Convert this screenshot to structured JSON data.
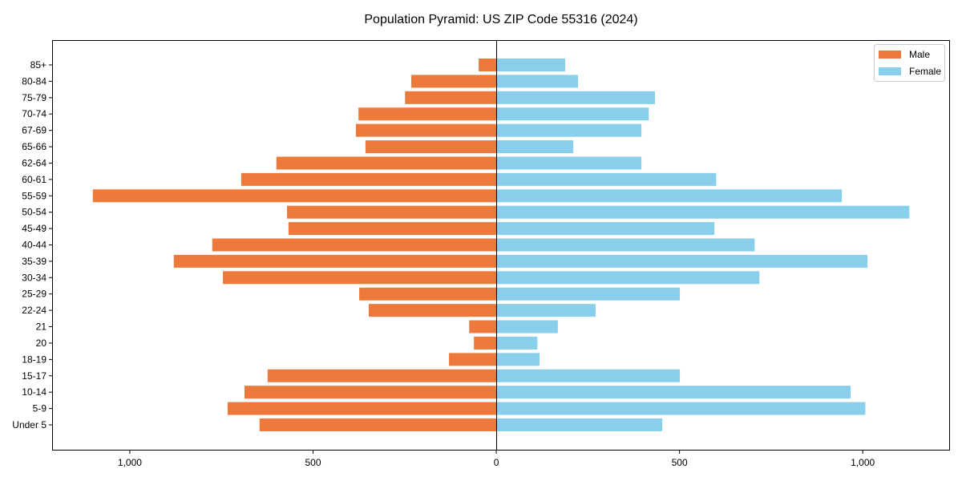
{
  "chart_data": {
    "type": "bar",
    "orientation": "horizontal-pyramid",
    "title": "Population Pyramid: US ZIP Code 55316 (2024)",
    "xlabel": "",
    "ylabel": "",
    "xlim": [
      -1212,
      1238
    ],
    "xticks": [
      -1000,
      -500,
      0,
      500,
      1000
    ],
    "xtick_labels": [
      "1,000",
      "500",
      "0",
      "500",
      "1,000"
    ],
    "grid": false,
    "legend_position": "top-right",
    "categories": [
      "Under 5",
      "5-9",
      "10-14",
      "15-17",
      "18-19",
      "20",
      "21",
      "22-24",
      "25-29",
      "30-34",
      "35-39",
      "40-44",
      "45-49",
      "50-54",
      "55-59",
      "60-61",
      "62-64",
      "65-66",
      "67-69",
      "70-74",
      "75-79",
      "80-84",
      "85+"
    ],
    "series": [
      {
        "name": "Male",
        "color": "#ed7a3b",
        "side": "left",
        "values": [
          646,
          733,
          687,
          624,
          129,
          61,
          74,
          348,
          374,
          746,
          880,
          775,
          567,
          571,
          1101,
          696,
          600,
          357,
          383,
          376,
          249,
          232,
          48
        ]
      },
      {
        "name": "Female",
        "color": "#89ceea",
        "side": "right",
        "values": [
          453,
          1007,
          967,
          501,
          118,
          112,
          168,
          271,
          501,
          718,
          1013,
          705,
          595,
          1127,
          943,
          600,
          396,
          210,
          396,
          416,
          433,
          223,
          188
        ]
      }
    ]
  }
}
